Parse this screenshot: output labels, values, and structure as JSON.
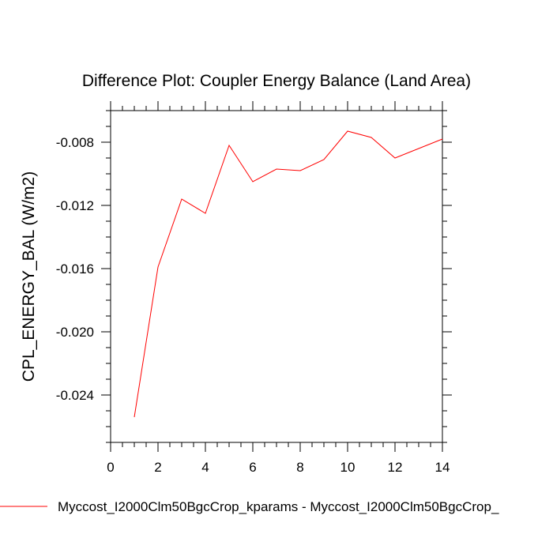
{
  "chart_data": {
    "type": "line",
    "title": "Difference Plot: Coupler Energy Balance (Land Area)",
    "xlabel": "",
    "ylabel": "CPL_ENERGY_BAL  (W/m2)",
    "xlim": [
      0,
      14
    ],
    "ylim": [
      -0.027,
      -0.006
    ],
    "xticks": [
      0,
      2,
      4,
      6,
      8,
      10,
      12,
      14
    ],
    "xtick_labels": [
      "0",
      "2",
      "4",
      "6",
      "8",
      "10",
      "12",
      "14"
    ],
    "yticks": [
      -0.024,
      -0.02,
      -0.016,
      -0.012,
      -0.008
    ],
    "ytick_labels": [
      "-0.024",
      "-0.020",
      "-0.016",
      "-0.012",
      "-0.008"
    ],
    "grid": false,
    "legend_position": "bottom",
    "series": [
      {
        "name": "Myccost_I2000Clm50BgcCrop_kparams - Myccost_I2000Clm50BgcCrop_",
        "color": "#ff0000",
        "x": [
          1,
          2,
          3,
          4,
          5,
          6,
          7,
          8,
          9,
          10,
          11,
          12,
          13,
          14
        ],
        "values": [
          -0.0254,
          -0.0159,
          -0.0116,
          -0.0125,
          -0.0082,
          -0.0105,
          -0.0097,
          -0.0098,
          -0.0091,
          -0.0073,
          -0.0077,
          -0.009,
          -0.0084,
          -0.0078
        ]
      }
    ]
  }
}
